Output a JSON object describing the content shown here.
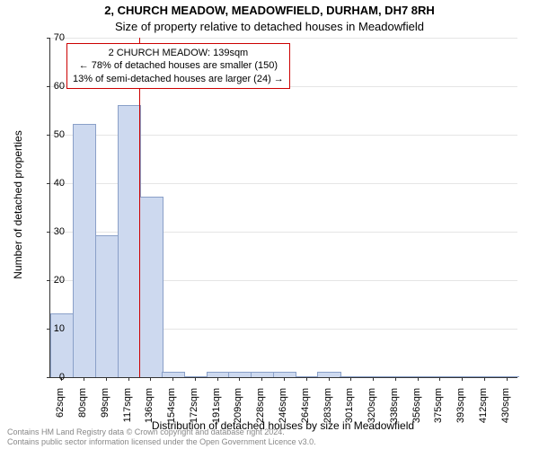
{
  "title_line1": "2, CHURCH MEADOW, MEADOWFIELD, DURHAM, DH7 8RH",
  "title_line2": "Size of property relative to detached houses in Meadowfield",
  "title_fontsize": 13,
  "chart": {
    "type": "histogram",
    "background_color": "#ffffff",
    "grid_color": "#e5e5e5",
    "axis_color": "#333333",
    "bar_fill": "#cdd9ef",
    "bar_border": "#8aa0c8",
    "marker_color": "#cc0000",
    "ylabel": "Number of detached properties",
    "xlabel": "Distribution of detached houses by size in Meadowfield",
    "label_fontsize": 12,
    "tick_fontsize": 11,
    "ylim_max": 70,
    "ytick_step": 10,
    "x_categories": [
      "62sqm",
      "80sqm",
      "99sqm",
      "117sqm",
      "136sqm",
      "154sqm",
      "172sqm",
      "191sqm",
      "209sqm",
      "228sqm",
      "246sqm",
      "264sqm",
      "283sqm",
      "301sqm",
      "320sqm",
      "338sqm",
      "356sqm",
      "375sqm",
      "393sqm",
      "412sqm",
      "430sqm"
    ],
    "bar_values": [
      13,
      52,
      29,
      56,
      37,
      1,
      0,
      1,
      1,
      1,
      1,
      0,
      1,
      0,
      0,
      0,
      0,
      0,
      0,
      0,
      0
    ],
    "bar_width_ratio": 0.98,
    "marker_index_after": 3,
    "annotation": {
      "line1": "2 CHURCH MEADOW: 139sqm",
      "line2": "← 78% of detached houses are smaller (150)",
      "line3": "13% of semi-detached houses are larger (24) →",
      "border_color": "#cc0000",
      "fontsize": 11
    }
  },
  "footer": {
    "line1": "Contains HM Land Registry data © Crown copyright and database right 2024.",
    "line2": "Contains public sector information licensed under the Open Government Licence v3.0.",
    "fontsize": 9,
    "color": "#888888"
  }
}
